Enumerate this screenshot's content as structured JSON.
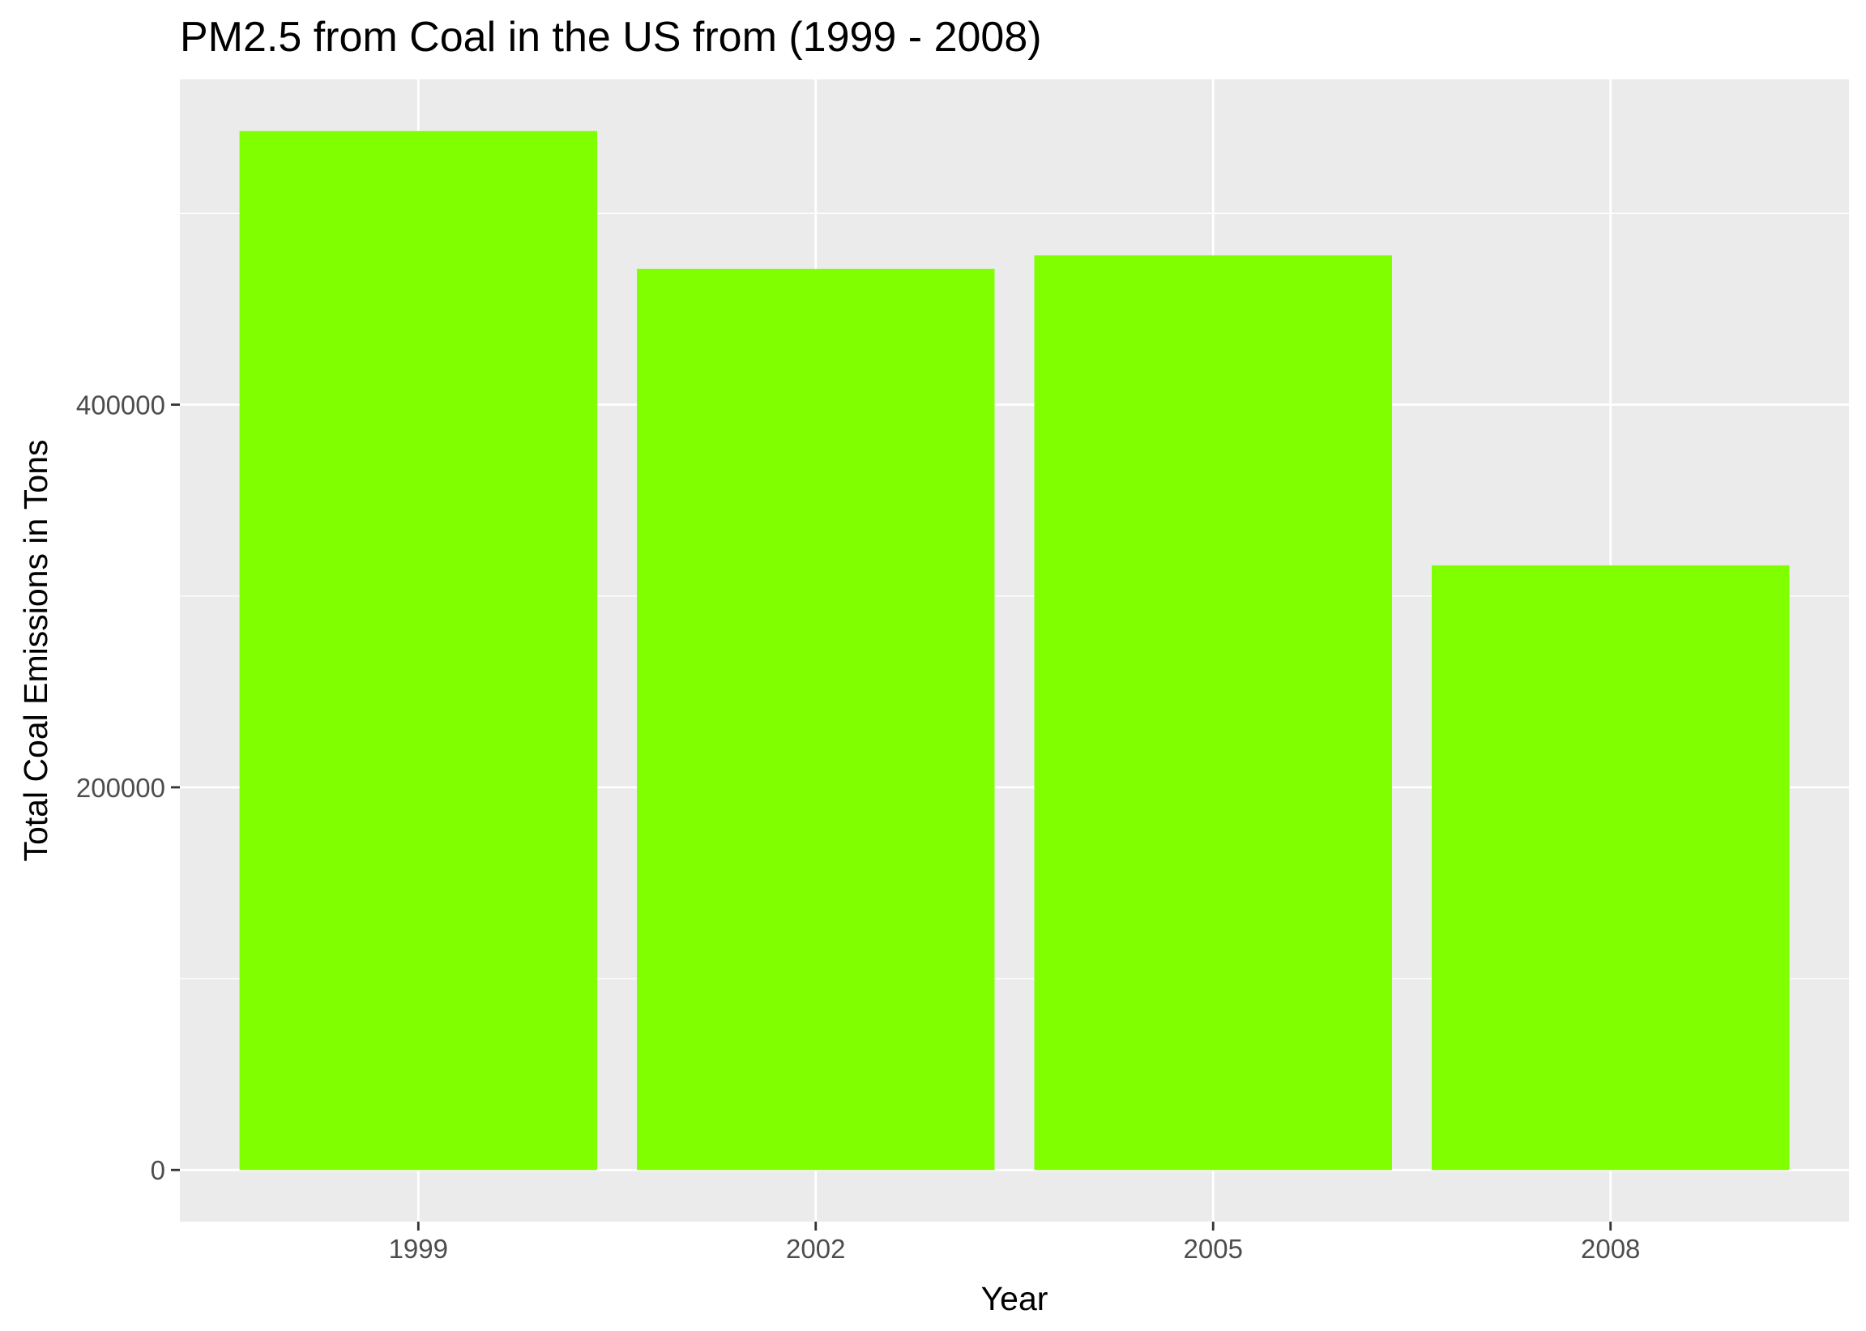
{
  "chart_data": {
    "type": "bar",
    "title": "PM2.5 from Coal in the US from (1999 - 2008)",
    "xlabel": "Year",
    "ylabel": "Total Coal Emissions in Tons",
    "categories": [
      "1999",
      "2002",
      "2005",
      "2008"
    ],
    "values": [
      543000,
      471000,
      478000,
      316000
    ],
    "ylim": [
      -27000,
      570000
    ],
    "yticks": [
      0,
      200000,
      400000
    ],
    "ytick_labels": [
      "0",
      "200000",
      "400000"
    ],
    "grid": true,
    "legend": "none",
    "colors": {
      "bar": "#7FFF00",
      "panel": "#EBEBEB",
      "grid": "#FFFFFF",
      "tick_text": "#4D4D4D",
      "tick_mark": "#333333"
    }
  }
}
